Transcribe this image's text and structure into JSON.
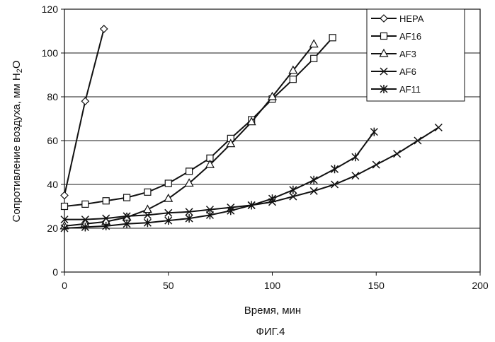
{
  "chart_data": {
    "type": "line",
    "title": "",
    "xlabel": "Время, мин",
    "ylabel": "Сопротивление воздуха, мм H₂O",
    "ylabel_main": "Сопротивление воздуха, мм ",
    "ylabel_unit_h": "H",
    "ylabel_unit_sub": "2",
    "ylabel_unit_o": "O",
    "xlim": [
      0,
      200
    ],
    "ylim": [
      0,
      120
    ],
    "x_ticks": [
      0,
      50,
      100,
      150,
      200
    ],
    "y_ticks": [
      0,
      20,
      40,
      60,
      80,
      100,
      120
    ],
    "grid": "horizontal",
    "legend_position": "top-right",
    "series": [
      {
        "name": "HEPA",
        "marker": "diamond",
        "x": [
          0,
          10,
          19
        ],
        "y": [
          35,
          78,
          111
        ]
      },
      {
        "name": "AF16",
        "marker": "square",
        "x": [
          0,
          10,
          20,
          30,
          40,
          50,
          60,
          70,
          80,
          90,
          100,
          110,
          120,
          129
        ],
        "y": [
          30,
          31,
          32.5,
          34,
          36.5,
          40.5,
          46,
          52,
          61,
          69.5,
          79,
          88,
          97.5,
          107
        ]
      },
      {
        "name": "AF3",
        "marker": "triangle",
        "x": [
          0,
          10,
          20,
          30,
          40,
          50,
          60,
          70,
          80,
          90,
          100,
          110,
          120
        ],
        "y": [
          21,
          22,
          23,
          25,
          28.5,
          33.5,
          40.5,
          49,
          58.5,
          68.5,
          80,
          92,
          104
        ]
      },
      {
        "name": "AF6",
        "marker": "x",
        "x": [
          0,
          10,
          20,
          30,
          40,
          50,
          60,
          70,
          80,
          90,
          100,
          110,
          120,
          130,
          140,
          150,
          160,
          170,
          180
        ],
        "y": [
          24,
          24,
          24.5,
          25.5,
          26,
          27,
          27.5,
          28.5,
          29.5,
          30.5,
          32,
          34.5,
          37,
          40,
          44,
          49,
          54,
          60,
          66
        ]
      },
      {
        "name": "AF11",
        "marker": "star",
        "x": [
          0,
          10,
          20,
          30,
          40,
          50,
          60,
          70,
          80,
          90,
          100,
          110,
          120,
          130,
          140,
          149
        ],
        "y": [
          20,
          20.5,
          21,
          22,
          22.5,
          23.5,
          24.5,
          26,
          28,
          30.5,
          33.5,
          37.5,
          42,
          47,
          52.5,
          64
        ]
      }
    ],
    "caption": "ФИГ.4"
  },
  "colors": {
    "series": "#111111",
    "grid": "#1a1a1a",
    "axis": "#111111",
    "background": "#ffffff"
  }
}
